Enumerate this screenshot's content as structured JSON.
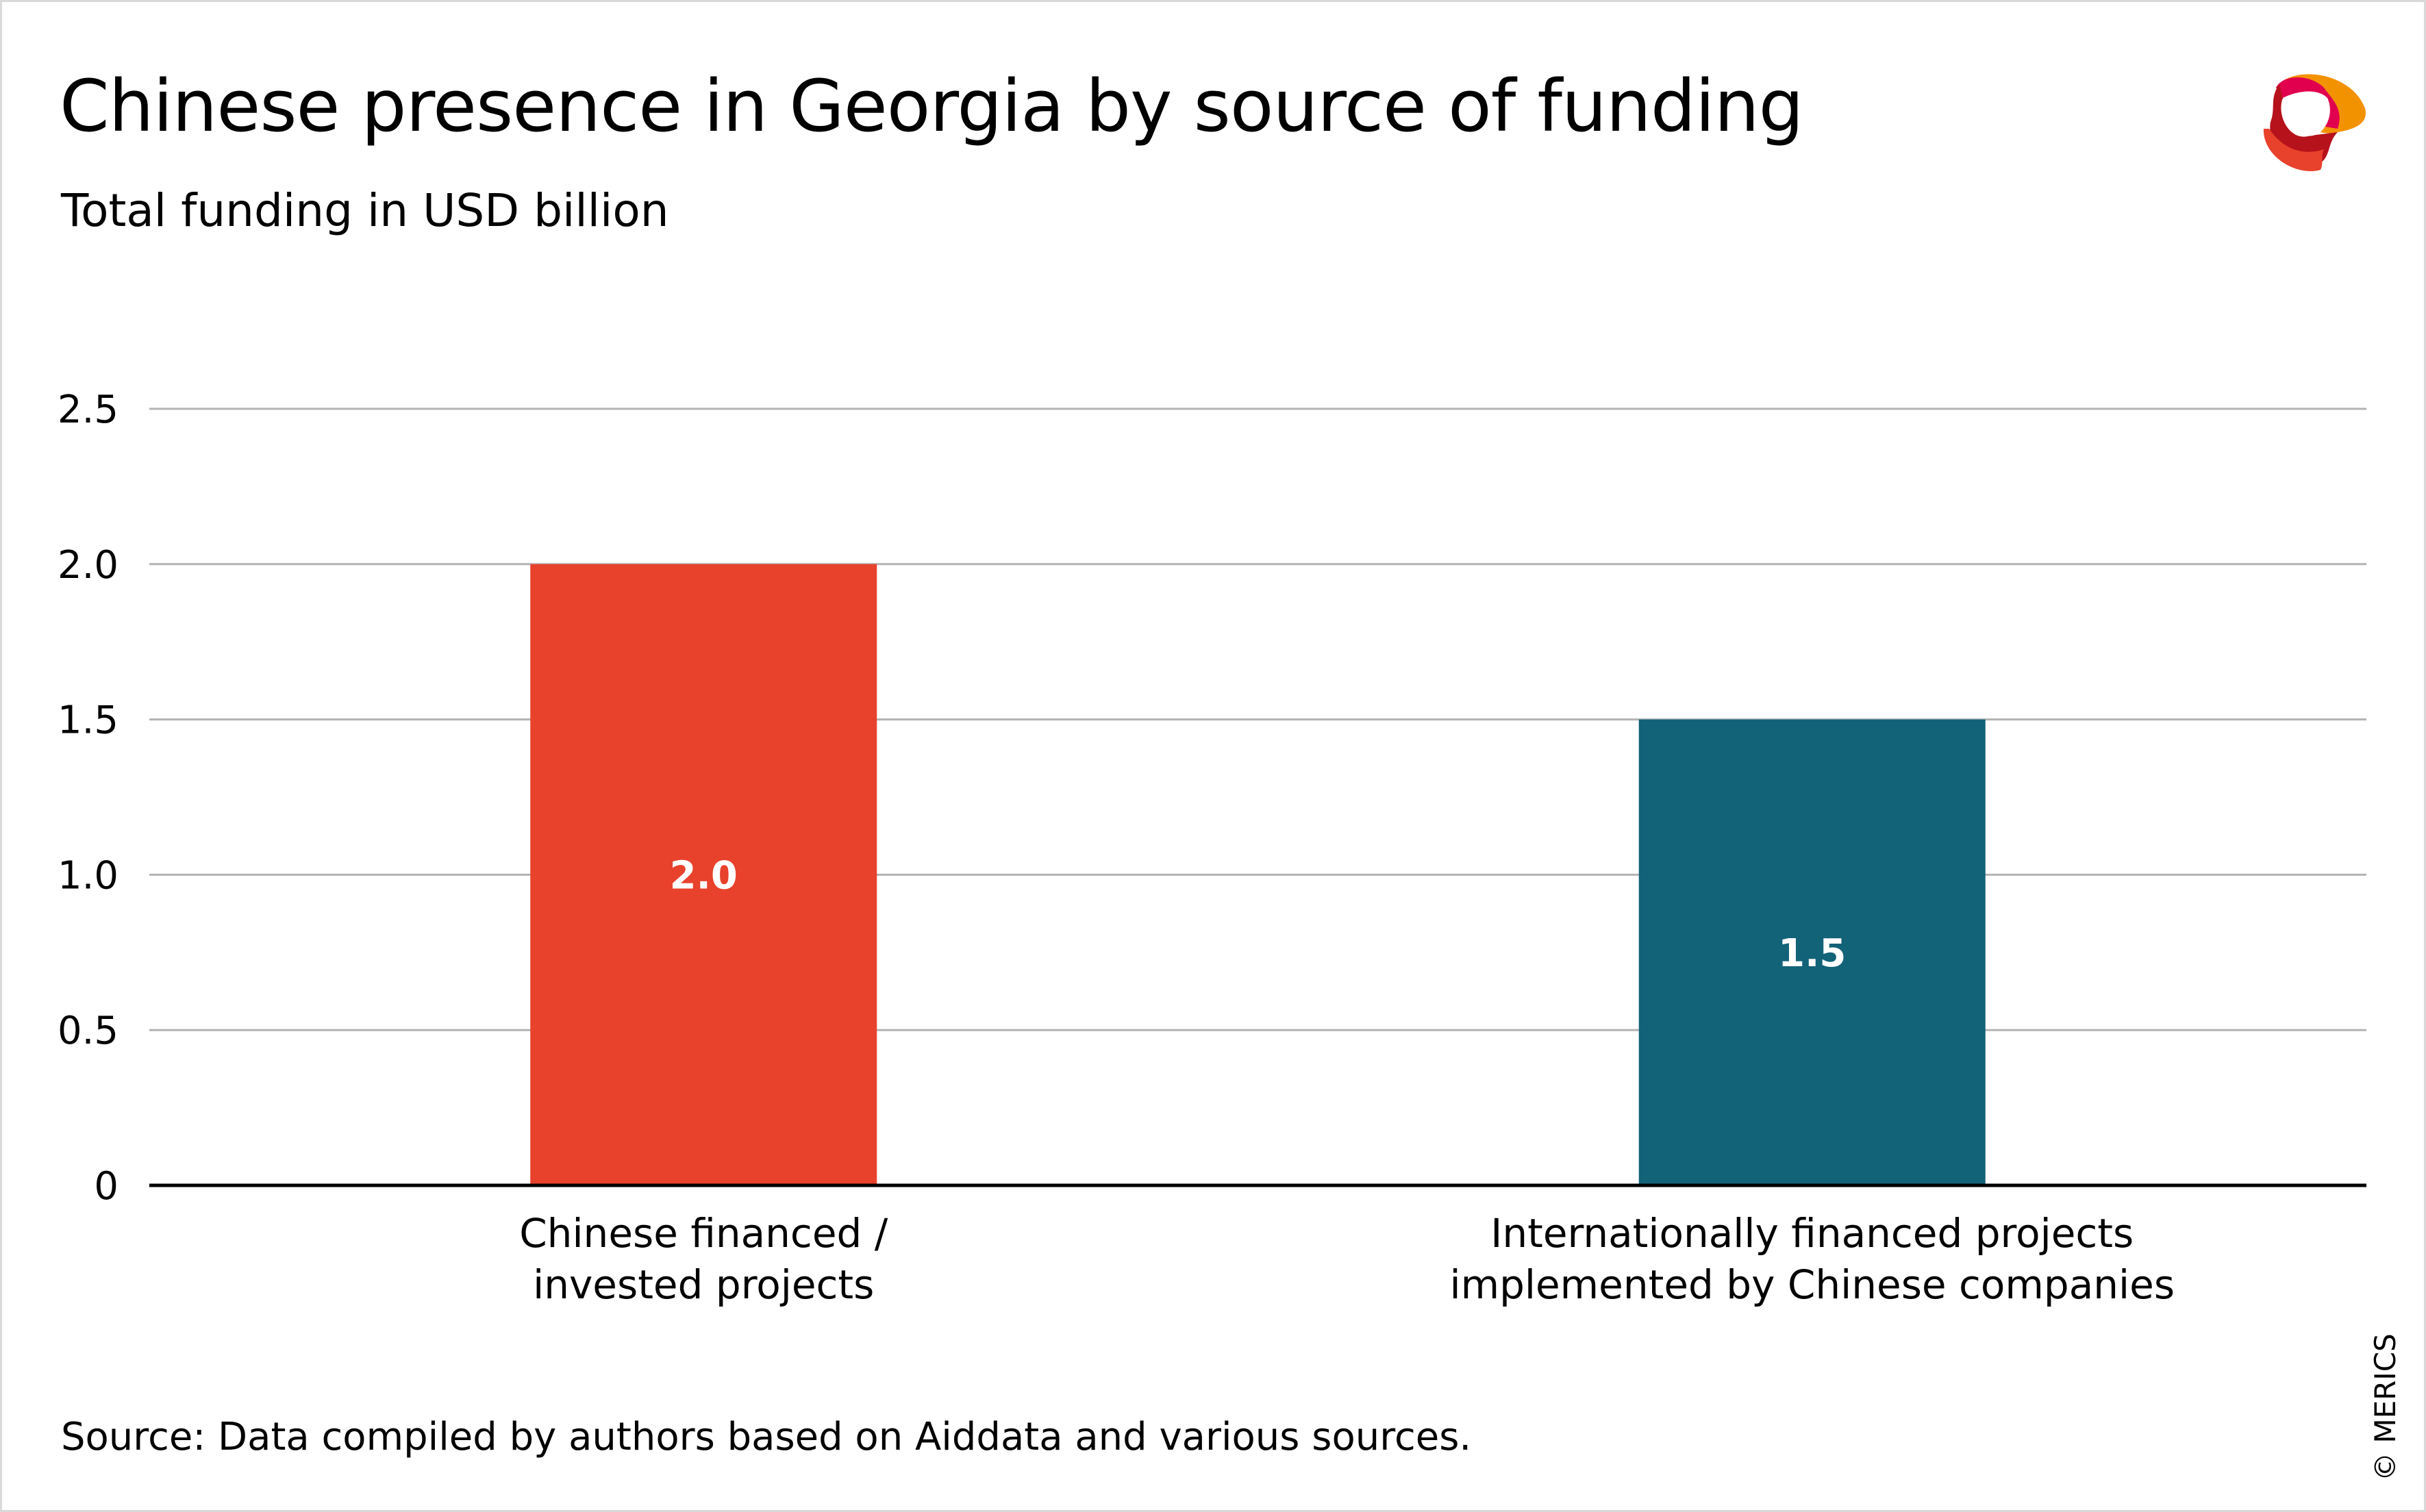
{
  "header": {
    "title": "Chinese presence in Georgia by source of funding",
    "subtitle": "Total funding in USD billion"
  },
  "footer": {
    "source": "Source: Data compiled by authors based on Aiddata and various sources.",
    "copyright": "© MERICS"
  },
  "logo": {
    "text": "MERICS"
  },
  "chart_data": {
    "type": "bar",
    "title": "Chinese presence in Georgia by source of funding",
    "subtitle": "Total funding in USD billion",
    "xlabel": "",
    "ylabel": "Total funding in USD billion",
    "categories": [
      [
        "Chinese financed /",
        "invested projects"
      ],
      [
        "Internationally financed projects",
        "implemented by Chinese companies"
      ]
    ],
    "values": [
      2.0,
      1.5
    ],
    "value_labels": [
      "2.0",
      "1.5"
    ],
    "colors": [
      "#E8412C",
      "#126278"
    ],
    "ylim": [
      0,
      2.5
    ],
    "yticks": [
      0,
      0.5,
      1.0,
      1.5,
      2.0,
      2.5
    ],
    "ytick_labels": [
      "0",
      "0.5",
      "1.0",
      "1.5",
      "2.0",
      "2.5"
    ],
    "grid": true,
    "legend": "none"
  }
}
